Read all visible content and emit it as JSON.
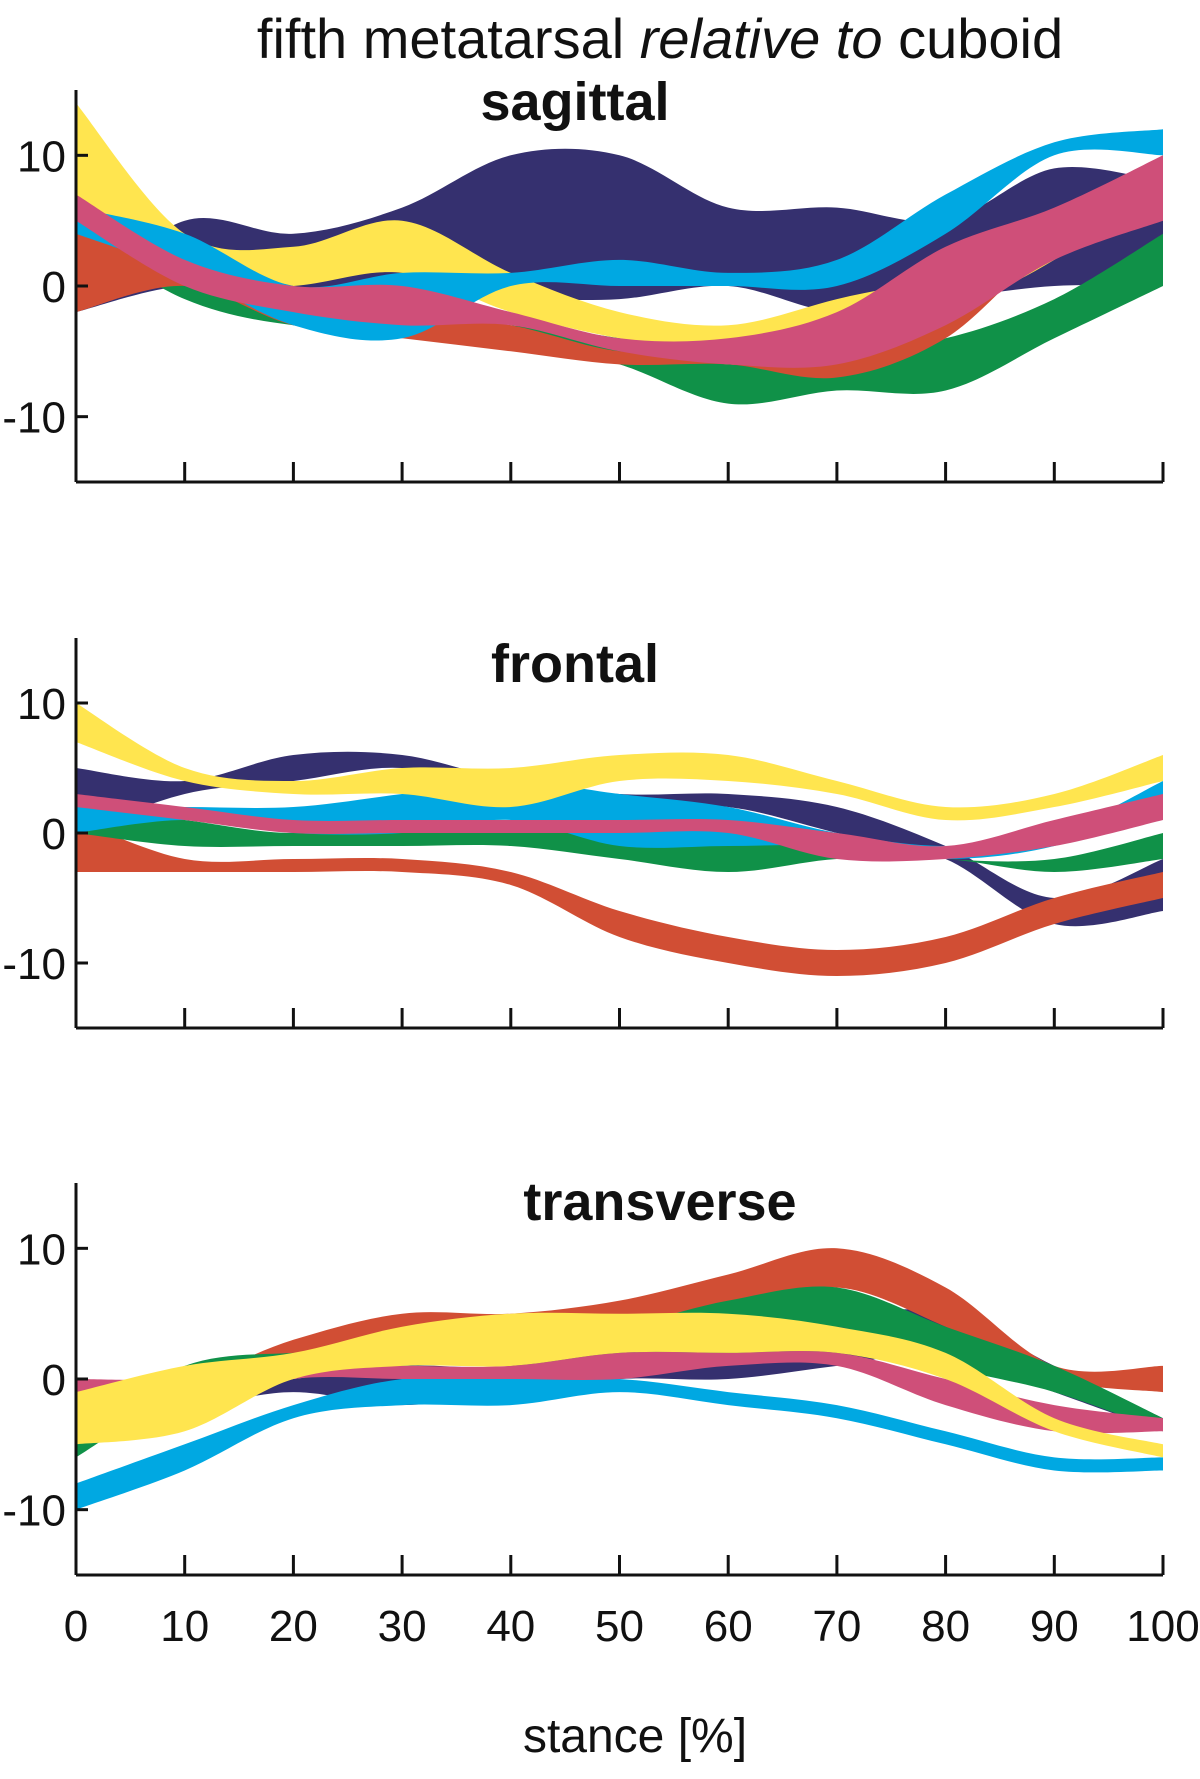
{
  "figure": {
    "title_parts": [
      "fifth metatarsal ",
      "relative to",
      " cuboid"
    ],
    "xlabel": "stance [%]"
  },
  "chart_data": [
    {
      "type": "area",
      "title": "sagittal",
      "xlim": [
        0,
        100
      ],
      "ylim": [
        -15,
        15
      ],
      "x_ticks": [
        0,
        10,
        20,
        30,
        40,
        50,
        60,
        70,
        80,
        90,
        100
      ],
      "y_ticks": [
        10,
        0,
        -10
      ],
      "series": [
        {
          "color": "#35306f",
          "x": [
            0,
            10,
            20,
            30,
            40,
            50,
            60,
            70,
            80,
            90,
            100
          ],
          "upper": [
            -1,
            5,
            4,
            6,
            10,
            10,
            6,
            6,
            5,
            9,
            8
          ],
          "lower": [
            -2,
            0,
            -1,
            -1,
            -1,
            -1,
            0,
            -2,
            -1,
            0,
            0
          ]
        },
        {
          "color": "#ffe54f",
          "x": [
            0,
            10,
            20,
            30,
            40,
            50,
            60,
            70,
            80,
            90,
            100
          ],
          "upper": [
            14,
            4,
            3,
            5,
            1,
            -2,
            -3,
            -1,
            1,
            5,
            10
          ],
          "lower": [
            6,
            0,
            0,
            1,
            -2,
            -4,
            -5,
            -4,
            -2,
            2,
            8
          ]
        },
        {
          "color": "#109148",
          "x": [
            0,
            10,
            20,
            30,
            40,
            50,
            60,
            70,
            80,
            90,
            100
          ],
          "upper": [
            5,
            1,
            -1,
            -2,
            -3,
            -4,
            -6,
            -5,
            -4,
            -1,
            4
          ],
          "lower": [
            4,
            -1,
            -3,
            -3,
            -4,
            -6,
            -9,
            -8,
            -8,
            -4,
            0
          ]
        },
        {
          "color": "#d14e34",
          "x": [
            0,
            10,
            20,
            30,
            40,
            50,
            60,
            70,
            80,
            90,
            100
          ],
          "upper": [
            5,
            2,
            0,
            -2,
            -3,
            -5,
            -5,
            -4,
            1,
            5,
            9
          ],
          "lower": [
            -2,
            0,
            -3,
            -4,
            -5,
            -6,
            -6,
            -7,
            -4,
            3,
            5
          ]
        },
        {
          "color": "#00a8e2",
          "x": [
            0,
            10,
            20,
            30,
            40,
            50,
            60,
            70,
            80,
            90,
            100
          ],
          "upper": [
            6,
            4,
            0,
            1,
            1,
            2,
            1,
            2,
            7,
            11,
            12
          ],
          "lower": [
            4,
            1,
            -3,
            -4,
            0,
            0,
            0,
            0,
            4,
            10,
            10
          ]
        },
        {
          "color": "#cf4f79",
          "x": [
            0,
            10,
            20,
            30,
            40,
            50,
            60,
            70,
            80,
            90,
            100
          ],
          "upper": [
            7,
            2,
            0,
            0,
            -2,
            -4,
            -4,
            -2,
            3,
            6,
            10
          ],
          "lower": [
            5,
            0,
            -2,
            -3,
            -3,
            -5,
            -6,
            -6,
            -3,
            2,
            5
          ]
        }
      ]
    },
    {
      "type": "area",
      "title": "frontal",
      "xlim": [
        0,
        100
      ],
      "ylim": [
        -15,
        15
      ],
      "x_ticks": [
        0,
        10,
        20,
        30,
        40,
        50,
        60,
        70,
        80,
        90,
        100
      ],
      "y_ticks": [
        10,
        0,
        -10
      ],
      "series": [
        {
          "color": "#35306f",
          "x": [
            0,
            10,
            20,
            30,
            40,
            50,
            60,
            70,
            80,
            90,
            100
          ],
          "upper": [
            5,
            4,
            6,
            6,
            4,
            3,
            3,
            2,
            -1,
            -5,
            -2
          ],
          "lower": [
            0,
            3,
            4,
            5,
            3,
            2,
            2,
            0,
            -2,
            -7,
            -6
          ]
        },
        {
          "color": "#d14e34",
          "x": [
            0,
            10,
            20,
            30,
            40,
            50,
            60,
            70,
            80,
            90,
            100
          ],
          "upper": [
            1,
            -2,
            -2,
            -2,
            -3,
            -6,
            -8,
            -9,
            -8,
            -5,
            -3
          ],
          "lower": [
            -3,
            -3,
            -3,
            -3,
            -4,
            -8,
            -10,
            -11,
            -10,
            -7,
            -5
          ]
        },
        {
          "color": "#109148",
          "x": [
            0,
            10,
            20,
            30,
            40,
            50,
            60,
            70,
            80,
            90,
            100
          ],
          "upper": [
            2,
            1,
            0,
            1,
            1,
            1,
            0,
            -1,
            -2,
            -2,
            0
          ],
          "lower": [
            0,
            -1,
            -1,
            -1,
            -1,
            -2,
            -3,
            -2,
            -2,
            -3,
            -2
          ]
        },
        {
          "color": "#00a8e2",
          "x": [
            0,
            10,
            20,
            30,
            40,
            50,
            60,
            70,
            80,
            90,
            100
          ],
          "upper": [
            2,
            2,
            2,
            3,
            4,
            3,
            2,
            0,
            -1,
            0,
            4
          ],
          "lower": [
            0,
            1,
            0,
            0,
            1,
            -1,
            -1,
            -1,
            -2,
            -1,
            2
          ]
        },
        {
          "color": "#ffe54f",
          "x": [
            0,
            10,
            20,
            30,
            40,
            50,
            60,
            70,
            80,
            90,
            100
          ],
          "upper": [
            10,
            5,
            4,
            5,
            5,
            6,
            6,
            4,
            2,
            3,
            6
          ],
          "lower": [
            7,
            4,
            3,
            3,
            2,
            4,
            4,
            3,
            1,
            2,
            4
          ]
        },
        {
          "color": "#cf4f79",
          "x": [
            0,
            10,
            20,
            30,
            40,
            50,
            60,
            70,
            80,
            90,
            100
          ],
          "upper": [
            3,
            2,
            1,
            1,
            1,
            1,
            1,
            0,
            -1,
            1,
            3
          ],
          "lower": [
            2,
            1,
            0,
            0,
            0,
            0,
            0,
            -2,
            -2,
            -1,
            1
          ]
        }
      ]
    },
    {
      "type": "area",
      "title": "transverse",
      "xlim": [
        0,
        100
      ],
      "ylim": [
        -15,
        15
      ],
      "x_ticks": [
        0,
        10,
        20,
        30,
        40,
        50,
        60,
        70,
        80,
        90,
        100
      ],
      "y_ticks": [
        10,
        0,
        -10
      ],
      "series": [
        {
          "color": "#35306f",
          "x": [
            0,
            10,
            20,
            30,
            40,
            50,
            60,
            70,
            80,
            90,
            100
          ],
          "upper": [
            0,
            -1,
            0,
            1,
            1,
            3,
            4,
            5,
            5,
            1,
            -3
          ],
          "lower": [
            -1,
            -2,
            -1,
            -2,
            -1,
            0,
            0,
            1,
            2,
            -1,
            -4
          ]
        },
        {
          "color": "#d14e34",
          "x": [
            0,
            10,
            20,
            30,
            40,
            50,
            60,
            70,
            80,
            90,
            100
          ],
          "upper": [
            0,
            0,
            3,
            5,
            5,
            6,
            8,
            10,
            7,
            1,
            1
          ],
          "lower": [
            -1,
            -1,
            1,
            3,
            3,
            4,
            5,
            7,
            4,
            0,
            -1
          ]
        },
        {
          "color": "#109148",
          "x": [
            0,
            10,
            20,
            30,
            40,
            50,
            60,
            70,
            80,
            90,
            100
          ],
          "upper": [
            -4,
            1,
            2,
            2,
            3,
            4,
            6,
            7,
            4,
            1,
            -3
          ],
          "lower": [
            -6,
            -1,
            1,
            1,
            2,
            3,
            3,
            4,
            1,
            -1,
            -4
          ]
        },
        {
          "color": "#00a8e2",
          "x": [
            0,
            10,
            20,
            30,
            40,
            50,
            60,
            70,
            80,
            90,
            100
          ],
          "upper": [
            -8,
            -5,
            -2,
            0,
            0,
            0,
            -1,
            -2,
            -4,
            -6,
            -6
          ],
          "lower": [
            -10,
            -7,
            -3,
            -2,
            -2,
            -1,
            -2,
            -3,
            -5,
            -7,
            -7
          ]
        },
        {
          "color": "#cf4f79",
          "x": [
            0,
            10,
            20,
            30,
            40,
            50,
            60,
            70,
            80,
            90,
            100
          ],
          "upper": [
            0,
            0,
            1,
            1,
            1,
            2,
            2,
            2,
            0,
            -2,
            -3
          ],
          "lower": [
            -2,
            -2,
            0,
            0,
            0,
            0,
            1,
            1,
            -2,
            -4,
            -4
          ]
        },
        {
          "color": "#ffe54f",
          "x": [
            0,
            10,
            20,
            30,
            40,
            50,
            60,
            70,
            80,
            90,
            100
          ],
          "upper": [
            -1,
            1,
            2,
            4,
            5,
            5,
            5,
            4,
            2,
            -3,
            -5
          ],
          "lower": [
            -5,
            -4,
            0,
            1,
            1,
            2,
            2,
            2,
            0,
            -4,
            -6
          ]
        }
      ]
    }
  ]
}
